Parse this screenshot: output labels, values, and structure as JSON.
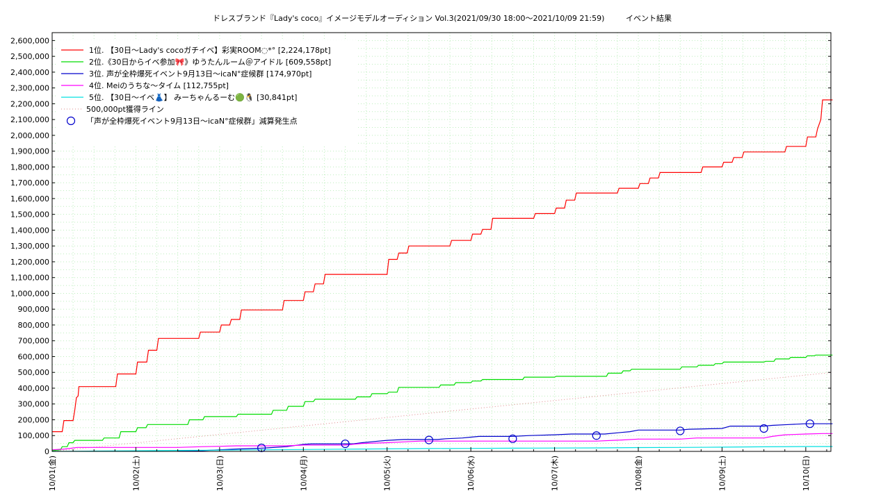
{
  "chart_data": {
    "type": "line",
    "title": "ドレスブランド『Lady's coco』イメージモデルオーディション Vol.3(2021/09/30 18:00～2021/10/09 21:59)",
    "subtitle": "イベント結果",
    "ylim": [
      0,
      2650000
    ],
    "xlim": [
      0,
      9.3
    ],
    "y_ticks": [
      "0",
      "100,000",
      "200,000",
      "300,000",
      "400,000",
      "500,000",
      "600,000",
      "700,000",
      "800,000",
      "900,000",
      "1,000,000",
      "1,100,000",
      "1,200,000",
      "1,300,000",
      "1,400,000",
      "1,500,000",
      "1,600,000",
      "1,700,000",
      "1,800,000",
      "1,900,000",
      "2,000,000",
      "2,100,000",
      "2,200,000",
      "2,300,000",
      "2,400,000",
      "2,500,000",
      "2,600,000"
    ],
    "x_ticks": [
      "10/01(金)",
      "10/02(土)",
      "10/03(日)",
      "10/04(月)",
      "10/05(火)",
      "10/06(水)",
      "10/07(木)",
      "10/08(金)",
      "10/09(土)",
      "10/10(日)"
    ],
    "grid": true,
    "legend_position": "top-left",
    "series": [
      {
        "name": "1位. 【30日～Lady's cocoガチイベ】彩実ROOM◌*° [2,224,178pt]",
        "color": "#ff0000",
        "points": [
          [
            0,
            125000
          ],
          [
            0.12,
            125000
          ],
          [
            0.14,
            195000
          ],
          [
            0.25,
            195000
          ],
          [
            0.27,
            260000
          ],
          [
            0.29,
            340000
          ],
          [
            0.31,
            350000
          ],
          [
            0.32,
            410000
          ],
          [
            0.76,
            410000
          ],
          [
            0.78,
            490000
          ],
          [
            1.0,
            490000
          ],
          [
            1.02,
            565000
          ],
          [
            1.13,
            565000
          ],
          [
            1.15,
            640000
          ],
          [
            1.25,
            640000
          ],
          [
            1.27,
            715000
          ],
          [
            1.75,
            715000
          ],
          [
            1.77,
            755000
          ],
          [
            2.0,
            755000
          ],
          [
            2.02,
            800000
          ],
          [
            2.12,
            800000
          ],
          [
            2.14,
            835000
          ],
          [
            2.24,
            835000
          ],
          [
            2.26,
            895000
          ],
          [
            2.75,
            895000
          ],
          [
            2.77,
            955000
          ],
          [
            3.0,
            955000
          ],
          [
            3.02,
            1010000
          ],
          [
            3.12,
            1010000
          ],
          [
            3.14,
            1060000
          ],
          [
            3.24,
            1060000
          ],
          [
            3.26,
            1120000
          ],
          [
            4.0,
            1120000
          ],
          [
            4.02,
            1215000
          ],
          [
            4.12,
            1215000
          ],
          [
            4.14,
            1255000
          ],
          [
            4.24,
            1255000
          ],
          [
            4.26,
            1300000
          ],
          [
            4.75,
            1300000
          ],
          [
            4.77,
            1335000
          ],
          [
            5.0,
            1335000
          ],
          [
            5.02,
            1375000
          ],
          [
            5.12,
            1375000
          ],
          [
            5.14,
            1405000
          ],
          [
            5.24,
            1405000
          ],
          [
            5.26,
            1475000
          ],
          [
            5.75,
            1475000
          ],
          [
            5.77,
            1505000
          ],
          [
            6.0,
            1505000
          ],
          [
            6.02,
            1540000
          ],
          [
            6.12,
            1540000
          ],
          [
            6.14,
            1590000
          ],
          [
            6.24,
            1590000
          ],
          [
            6.26,
            1635000
          ],
          [
            6.75,
            1635000
          ],
          [
            6.77,
            1665000
          ],
          [
            7.0,
            1665000
          ],
          [
            7.02,
            1695000
          ],
          [
            7.12,
            1695000
          ],
          [
            7.14,
            1730000
          ],
          [
            7.24,
            1730000
          ],
          [
            7.26,
            1765000
          ],
          [
            7.75,
            1765000
          ],
          [
            7.77,
            1800000
          ],
          [
            8.0,
            1800000
          ],
          [
            8.02,
            1830000
          ],
          [
            8.12,
            1830000
          ],
          [
            8.14,
            1860000
          ],
          [
            8.24,
            1860000
          ],
          [
            8.26,
            1895000
          ],
          [
            8.75,
            1895000
          ],
          [
            8.77,
            1930000
          ],
          [
            9.0,
            1930000
          ],
          [
            9.02,
            1990000
          ],
          [
            9.12,
            1990000
          ],
          [
            9.14,
            2040000
          ],
          [
            9.18,
            2100000
          ],
          [
            9.2,
            2224178
          ],
          [
            9.32,
            2224178
          ]
        ]
      },
      {
        "name": "2位.《30日からイベ参加🎀》ゆうたんルーム＠アイドル [609,558pt]",
        "color": "#00dd00",
        "points": [
          [
            0,
            5000
          ],
          [
            0.1,
            10000
          ],
          [
            0.12,
            30000
          ],
          [
            0.18,
            30000
          ],
          [
            0.2,
            55000
          ],
          [
            0.25,
            55000
          ],
          [
            0.27,
            70000
          ],
          [
            0.6,
            70000
          ],
          [
            0.62,
            85000
          ],
          [
            0.8,
            85000
          ],
          [
            0.82,
            125000
          ],
          [
            1.0,
            125000
          ],
          [
            1.02,
            150000
          ],
          [
            1.12,
            150000
          ],
          [
            1.14,
            170000
          ],
          [
            1.62,
            170000
          ],
          [
            1.64,
            200000
          ],
          [
            1.8,
            200000
          ],
          [
            1.82,
            220000
          ],
          [
            2.2,
            220000
          ],
          [
            2.22,
            235000
          ],
          [
            2.62,
            235000
          ],
          [
            2.64,
            260000
          ],
          [
            2.8,
            260000
          ],
          [
            2.82,
            285000
          ],
          [
            3.0,
            285000
          ],
          [
            3.02,
            315000
          ],
          [
            3.12,
            315000
          ],
          [
            3.14,
            330000
          ],
          [
            3.62,
            330000
          ],
          [
            3.64,
            345000
          ],
          [
            3.8,
            345000
          ],
          [
            3.82,
            365000
          ],
          [
            4.0,
            365000
          ],
          [
            4.02,
            375000
          ],
          [
            4.12,
            375000
          ],
          [
            4.14,
            405000
          ],
          [
            4.62,
            405000
          ],
          [
            4.64,
            420000
          ],
          [
            4.8,
            420000
          ],
          [
            4.82,
            435000
          ],
          [
            5.0,
            435000
          ],
          [
            5.02,
            445000
          ],
          [
            5.12,
            445000
          ],
          [
            5.14,
            455000
          ],
          [
            5.62,
            455000
          ],
          [
            5.64,
            470000
          ],
          [
            6.0,
            470000
          ],
          [
            6.02,
            475000
          ],
          [
            6.62,
            475000
          ],
          [
            6.64,
            495000
          ],
          [
            6.8,
            495000
          ],
          [
            6.82,
            510000
          ],
          [
            6.9,
            510000
          ],
          [
            6.92,
            520000
          ],
          [
            7.5,
            520000
          ],
          [
            7.52,
            535000
          ],
          [
            7.7,
            535000
          ],
          [
            7.72,
            545000
          ],
          [
            7.9,
            545000
          ],
          [
            7.92,
            555000
          ],
          [
            8.0,
            555000
          ],
          [
            8.02,
            565000
          ],
          [
            8.5,
            565000
          ],
          [
            8.52,
            570000
          ],
          [
            8.62,
            570000
          ],
          [
            8.64,
            585000
          ],
          [
            8.8,
            585000
          ],
          [
            8.82,
            595000
          ],
          [
            9.0,
            595000
          ],
          [
            9.02,
            605000
          ],
          [
            9.1,
            605000
          ],
          [
            9.12,
            609558
          ],
          [
            9.32,
            609558
          ]
        ]
      },
      {
        "name": "3位. 声が全枠爆死イベント9月13日～icaN°症候群 [174,970pt]",
        "color": "#0000cc",
        "points": [
          [
            1.5,
            5000
          ],
          [
            1.8,
            5000
          ],
          [
            2.0,
            10000
          ],
          [
            2.2,
            15000
          ],
          [
            2.5,
            20000
          ],
          [
            2.8,
            30000
          ],
          [
            3.0,
            45000
          ],
          [
            3.1,
            48000
          ],
          [
            3.6,
            48000
          ],
          [
            3.7,
            55000
          ],
          [
            3.8,
            60000
          ],
          [
            4.0,
            70000
          ],
          [
            4.2,
            75000
          ],
          [
            4.6,
            75000
          ],
          [
            4.7,
            80000
          ],
          [
            4.9,
            85000
          ],
          [
            5.0,
            90000
          ],
          [
            5.1,
            95000
          ],
          [
            5.5,
            95000
          ],
          [
            5.7,
            100000
          ],
          [
            6.0,
            105000
          ],
          [
            6.2,
            110000
          ],
          [
            6.6,
            110000
          ],
          [
            6.8,
            120000
          ],
          [
            6.9,
            125000
          ],
          [
            7.0,
            135000
          ],
          [
            7.5,
            135000
          ],
          [
            7.6,
            140000
          ],
          [
            8.0,
            145000
          ],
          [
            8.1,
            160000
          ],
          [
            8.5,
            160000
          ],
          [
            8.6,
            165000
          ],
          [
            8.8,
            170000
          ],
          [
            9.0,
            174970
          ],
          [
            9.32,
            174970
          ]
        ]
      },
      {
        "name": "4位. Meiのうちな～タイム [112,755pt]",
        "color": "#ff00ff",
        "points": [
          [
            0,
            10000
          ],
          [
            0.15,
            15000
          ],
          [
            0.3,
            25000
          ],
          [
            1.5,
            25000
          ],
          [
            1.8,
            30000
          ],
          [
            2.0,
            32000
          ],
          [
            2.2,
            35000
          ],
          [
            2.8,
            35000
          ],
          [
            3.0,
            40000
          ],
          [
            3.5,
            40000
          ],
          [
            3.7,
            50000
          ],
          [
            4.0,
            55000
          ],
          [
            4.2,
            60000
          ],
          [
            4.4,
            65000
          ],
          [
            5.0,
            65000
          ],
          [
            5.5,
            65000
          ],
          [
            6.0,
            65000
          ],
          [
            6.5,
            65000
          ],
          [
            6.8,
            72000
          ],
          [
            7.0,
            78000
          ],
          [
            7.5,
            78000
          ],
          [
            7.7,
            85000
          ],
          [
            8.0,
            85000
          ],
          [
            8.5,
            85000
          ],
          [
            8.6,
            95000
          ],
          [
            8.75,
            105000
          ],
          [
            9.0,
            110000
          ],
          [
            9.2,
            112755
          ],
          [
            9.32,
            112755
          ]
        ]
      },
      {
        "name": "5位. 【30日～イベ👗】 みーちゃんるーむ🟢🐧 [30,841pt]",
        "color": "#00e0e0",
        "points": [
          [
            0,
            0
          ],
          [
            0.5,
            2000
          ],
          [
            1.0,
            4000
          ],
          [
            1.5,
            6000
          ],
          [
            2.0,
            8000
          ],
          [
            2.5,
            10000
          ],
          [
            3.0,
            12000
          ],
          [
            3.5,
            14000
          ],
          [
            4.0,
            16000
          ],
          [
            4.5,
            18000
          ],
          [
            5.0,
            19000
          ],
          [
            5.5,
            20000
          ],
          [
            6.0,
            21000
          ],
          [
            6.5,
            22000
          ],
          [
            7.0,
            24000
          ],
          [
            7.5,
            25000
          ],
          [
            8.0,
            27000
          ],
          [
            8.5,
            29000
          ],
          [
            9.0,
            30841
          ],
          [
            9.32,
            30841
          ]
        ]
      }
    ],
    "reference_line": {
      "name": "500,000pt獲得ライン",
      "color": "#dd8888",
      "points": [
        [
          0,
          0
        ],
        [
          9.32,
          500000
        ]
      ]
    },
    "markers": {
      "name": "「声が全枠爆死イベント9月13日～icaN°症候群」減算発生点",
      "color": "#0000cc",
      "points": [
        [
          2.5,
          22000
        ],
        [
          3.5,
          48000
        ],
        [
          4.5,
          72000
        ],
        [
          5.5,
          80000
        ],
        [
          6.5,
          100000
        ],
        [
          7.5,
          130000
        ],
        [
          8.5,
          145000
        ],
        [
          9.05,
          175000
        ]
      ]
    }
  }
}
